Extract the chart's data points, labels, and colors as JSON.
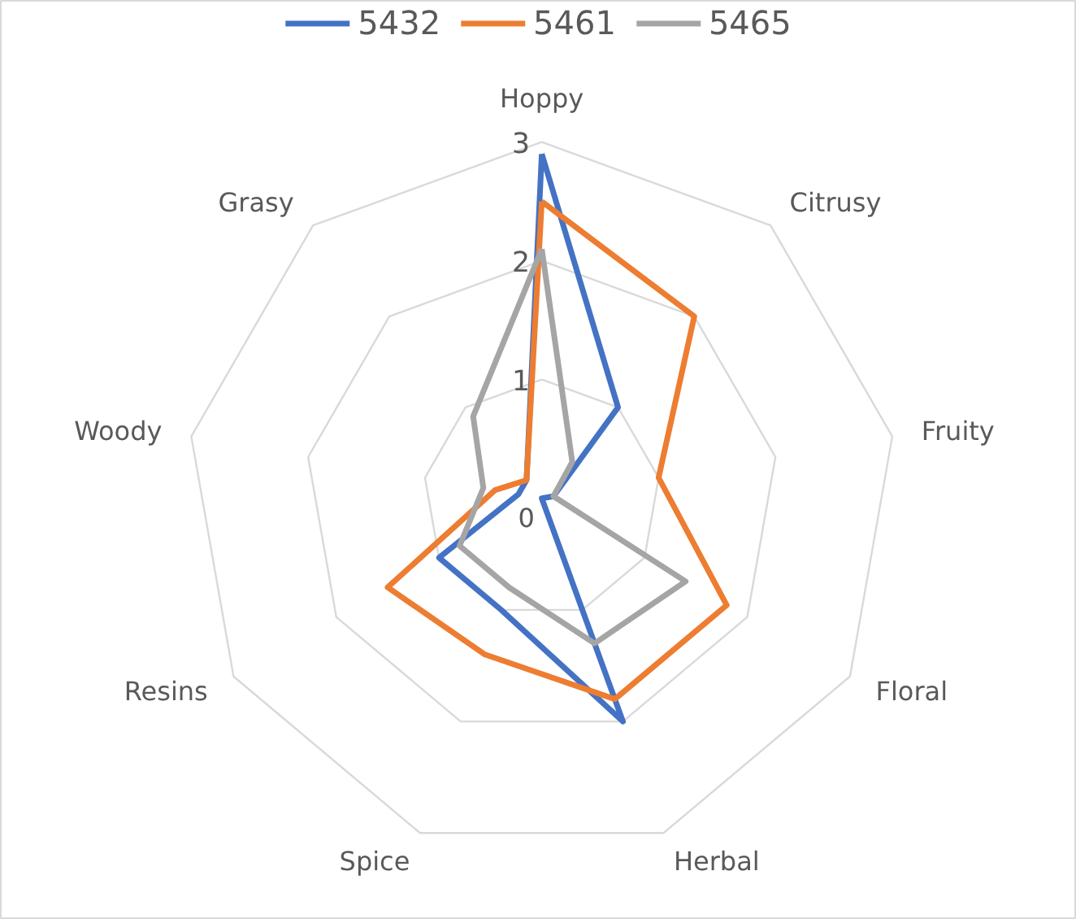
{
  "chart_data": {
    "type": "radar",
    "categories": [
      "Hoppy",
      "Citrusy",
      "Fruity",
      "Floral",
      "Herbal",
      "Spice",
      "Resins",
      "Woody",
      "Grasy"
    ],
    "series": [
      {
        "name": "5432",
        "color": "#4472c4",
        "values": [
          2.9,
          1.0,
          0.1,
          0.0,
          2.0,
          1.0,
          1.0,
          0.2,
          0.2
        ]
      },
      {
        "name": "5461",
        "color": "#ed7d31",
        "values": [
          2.5,
          2.0,
          1.0,
          1.8,
          1.8,
          1.4,
          1.5,
          0.4,
          0.2
        ]
      },
      {
        "name": "5465",
        "color": "#a5a5a5",
        "values": [
          2.1,
          0.4,
          0.1,
          1.4,
          1.3,
          0.8,
          0.8,
          0.5,
          0.9
        ]
      }
    ],
    "ylim": [
      0,
      3
    ],
    "yticks": [
      0,
      1,
      2,
      3
    ],
    "grid": true,
    "legend": "top"
  }
}
